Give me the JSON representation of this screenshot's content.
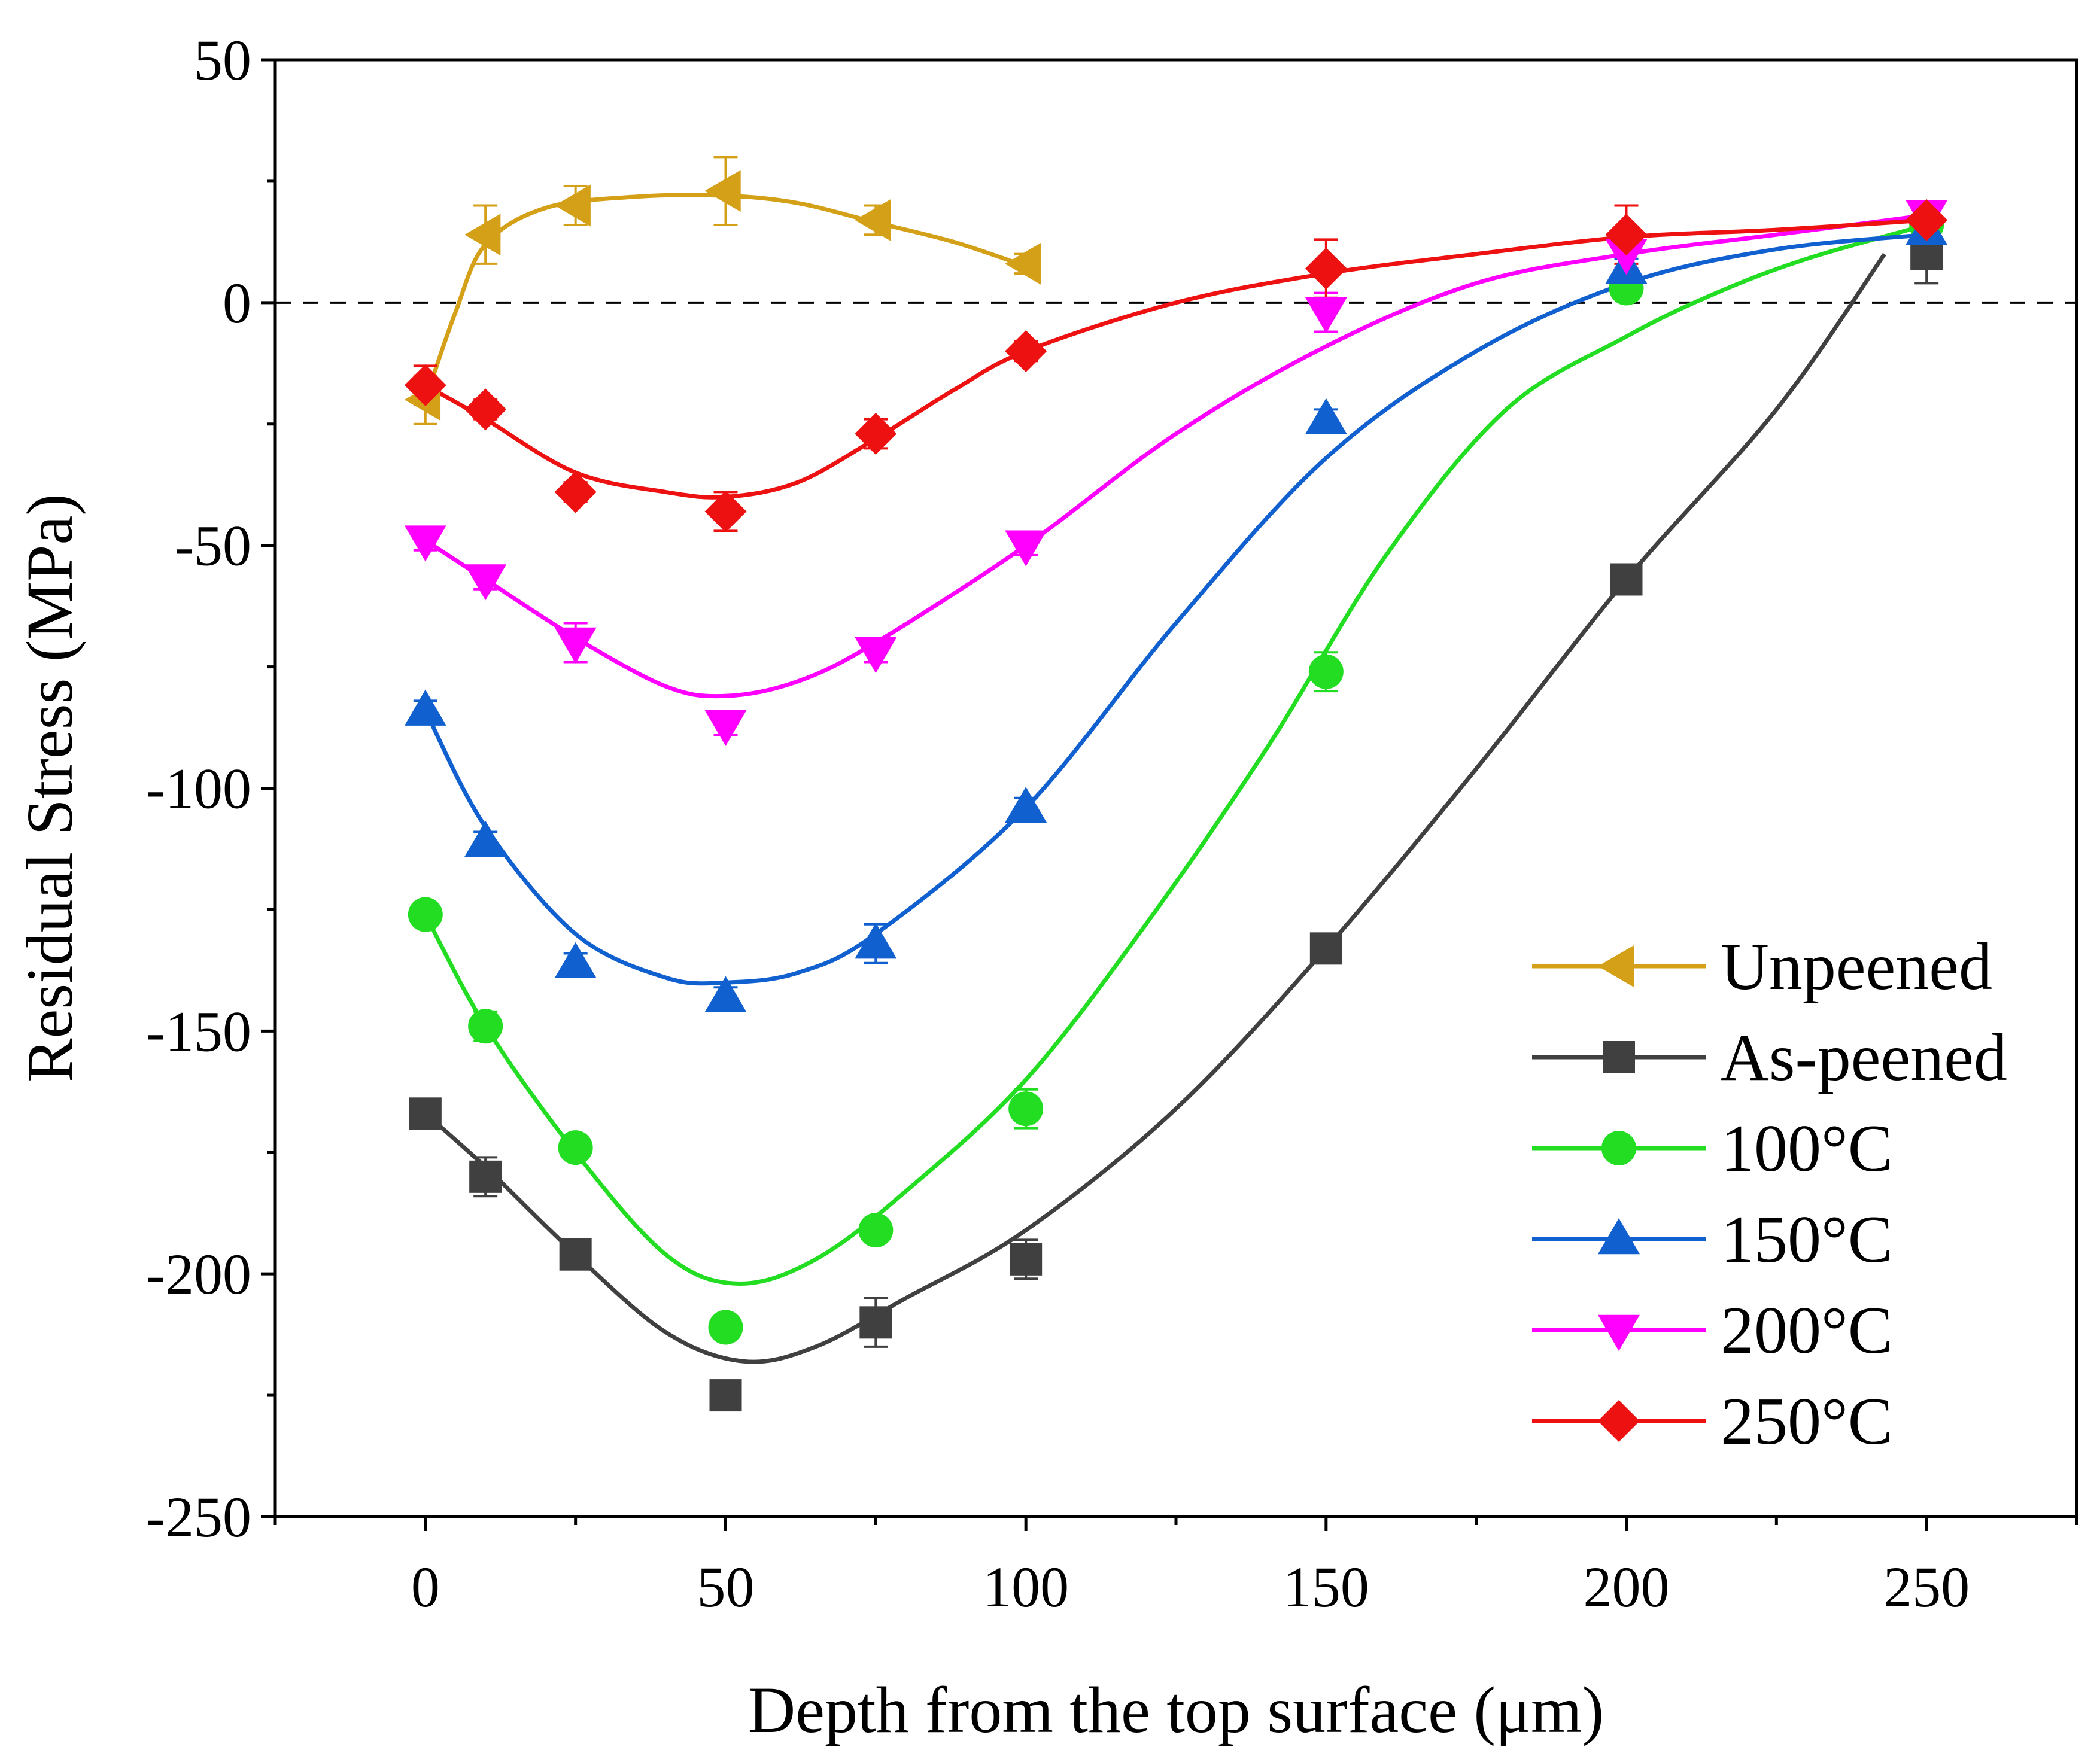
{
  "chart_data": {
    "type": "line",
    "title": "",
    "xlabel": "Depth from the top surface (μm)",
    "ylabel": "Residual Stress (MPa)",
    "xlim": [
      -25,
      275
    ],
    "ylim": [
      -250,
      50
    ],
    "x_ticks": [
      0,
      50,
      100,
      150,
      200,
      250
    ],
    "x_tick_labels": [
      "0",
      "50",
      "100",
      "150",
      "200",
      "250"
    ],
    "y_ticks": [
      -250,
      -200,
      -150,
      -100,
      -50,
      0,
      50
    ],
    "y_tick_labels": [
      "-250",
      "-200",
      "-150",
      "-100",
      "-50",
      "0",
      "50"
    ],
    "reference_line": {
      "y": 0,
      "style": "dashed"
    },
    "legend_position": "bottom-right",
    "series": [
      {
        "name": "Unpeened",
        "color": "#d4a017",
        "marker": "triangle-left",
        "x": [
          0,
          10,
          25,
          50,
          75,
          100
        ],
        "y": [
          -20,
          14,
          20,
          23,
          17,
          8
        ],
        "err": [
          5,
          6,
          4,
          7,
          3,
          2
        ],
        "fit": [
          [
            0,
            -20
          ],
          [
            5,
            -2
          ],
          [
            10,
            12
          ],
          [
            20,
            19.5
          ],
          [
            35,
            21.8
          ],
          [
            50,
            22
          ],
          [
            62,
            20.5
          ],
          [
            75,
            16.5
          ],
          [
            88,
            12.5
          ],
          [
            100,
            7.5
          ]
        ]
      },
      {
        "name": "As-peened",
        "color": "#404040",
        "marker": "square",
        "x": [
          0,
          10,
          25,
          50,
          75,
          100,
          150,
          200,
          250
        ],
        "y": [
          -167,
          -180,
          -196,
          -225,
          -210,
          -197,
          -133,
          -57,
          10
        ],
        "err": [
          2,
          4,
          3,
          2,
          5,
          4,
          2,
          2,
          6
        ],
        "fit": [
          [
            0,
            -167
          ],
          [
            10,
            -178
          ],
          [
            25,
            -196
          ],
          [
            40,
            -212
          ],
          [
            53,
            -218
          ],
          [
            65,
            -215
          ],
          [
            80,
            -205
          ],
          [
            100,
            -191
          ],
          [
            125,
            -166
          ],
          [
            150,
            -133
          ],
          [
            175,
            -96
          ],
          [
            200,
            -57
          ],
          [
            225,
            -22
          ],
          [
            243,
            10
          ]
        ]
      },
      {
        "name": "100°C",
        "color": "#22dd22",
        "marker": "circle",
        "x": [
          0,
          10,
          25,
          50,
          75,
          100,
          150,
          200,
          250
        ],
        "y": [
          -126,
          -149,
          -174,
          -211,
          -191,
          -166,
          -76,
          3,
          16
        ],
        "err": [
          2,
          3,
          2,
          2,
          2,
          4,
          4,
          2,
          2
        ],
        "fit": [
          [
            0,
            -126
          ],
          [
            10,
            -149
          ],
          [
            25,
            -175
          ],
          [
            40,
            -196
          ],
          [
            52,
            -202
          ],
          [
            65,
            -197
          ],
          [
            80,
            -183
          ],
          [
            100,
            -160
          ],
          [
            120,
            -128
          ],
          [
            140,
            -92
          ],
          [
            160,
            -52
          ],
          [
            180,
            -22
          ],
          [
            200,
            -7
          ],
          [
            215,
            2
          ],
          [
            230,
            9
          ],
          [
            250,
            16
          ]
        ]
      },
      {
        "name": "150°C",
        "color": "#1060d0",
        "marker": "triangle-up",
        "x": [
          0,
          10,
          25,
          50,
          75,
          100,
          150,
          200,
          250
        ],
        "y": [
          -84,
          -111,
          -136,
          -143,
          -132,
          -104,
          -24,
          7,
          15
        ],
        "err": [
          2,
          2,
          2,
          2,
          4,
          2,
          2,
          2,
          2
        ],
        "fit": [
          [
            0,
            -84
          ],
          [
            10,
            -108
          ],
          [
            25,
            -130
          ],
          [
            40,
            -139
          ],
          [
            50,
            -140
          ],
          [
            62,
            -138
          ],
          [
            75,
            -130
          ],
          [
            100,
            -104
          ],
          [
            125,
            -66
          ],
          [
            150,
            -32
          ],
          [
            175,
            -10
          ],
          [
            200,
            4
          ],
          [
            225,
            11
          ],
          [
            250,
            14
          ]
        ]
      },
      {
        "name": "200°C",
        "color": "#ff00ff",
        "marker": "triangle-down",
        "x": [
          0,
          10,
          25,
          50,
          75,
          100,
          150,
          200,
          250
        ],
        "y": [
          -49,
          -57,
          -70,
          -87,
          -72,
          -50,
          -2,
          10,
          18
        ],
        "err": [
          2,
          2,
          4,
          2,
          2,
          2,
          4,
          3,
          2
        ],
        "fit": [
          [
            0,
            -49
          ],
          [
            10,
            -57
          ],
          [
            25,
            -69
          ],
          [
            40,
            -79
          ],
          [
            50,
            -81
          ],
          [
            62,
            -78
          ],
          [
            75,
            -70
          ],
          [
            100,
            -50
          ],
          [
            125,
            -27
          ],
          [
            150,
            -9
          ],
          [
            175,
            4
          ],
          [
            200,
            10
          ],
          [
            225,
            14
          ],
          [
            250,
            18
          ]
        ]
      },
      {
        "name": "250°C",
        "color": "#ee1111",
        "marker": "diamond",
        "x": [
          0,
          10,
          25,
          50,
          75,
          100,
          150,
          200,
          250
        ],
        "y": [
          -17,
          -22,
          -39,
          -43,
          -27,
          -10,
          7,
          14,
          17
        ],
        "err": [
          4,
          2,
          2,
          4,
          3,
          2,
          6,
          6,
          2
        ],
        "fit": [
          [
            0,
            -17
          ],
          [
            10,
            -24
          ],
          [
            25,
            -35
          ],
          [
            40,
            -39
          ],
          [
            50,
            -40
          ],
          [
            62,
            -37
          ],
          [
            75,
            -28
          ],
          [
            88,
            -18
          ],
          [
            100,
            -10
          ],
          [
            125,
            0
          ],
          [
            150,
            6
          ],
          [
            175,
            10
          ],
          [
            200,
            13.5
          ],
          [
            225,
            15
          ],
          [
            250,
            17
          ]
        ]
      }
    ]
  }
}
